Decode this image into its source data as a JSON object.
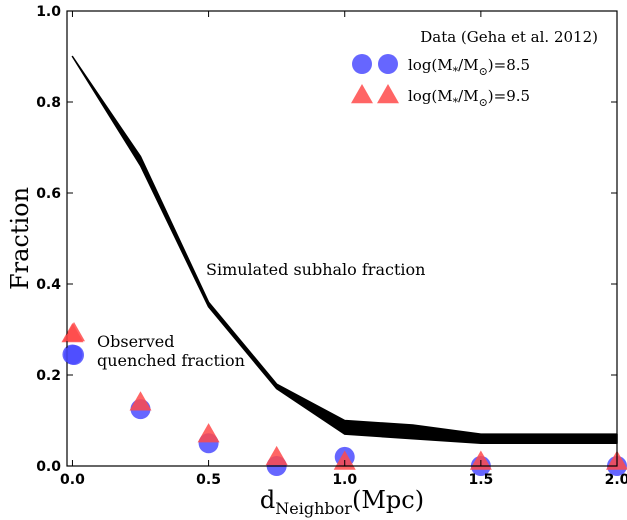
{
  "chart_data": {
    "type": "scatter",
    "xlabel": "d",
    "xlabel_sub": "Neighbor",
    "xlabel_unit": "(Mpc)",
    "ylabel": "Fraction",
    "xlim": [
      -0.02,
      2.0
    ],
    "ylim": [
      0.0,
      1.0
    ],
    "x_ticks": [
      "0.0",
      "0.5",
      "1.0",
      "1.5",
      "2.0"
    ],
    "y_ticks": [
      "0.0",
      "0.2",
      "0.4",
      "0.6",
      "0.8",
      "1.0"
    ],
    "grid": false,
    "legend": {
      "title": "Data (Geha et al. 2012)",
      "placement": "top-right"
    },
    "band": {
      "label": "Simulated subhalo fraction",
      "color": "#000000",
      "x": [
        0.0,
        0.25,
        0.5,
        0.75,
        1.0,
        1.25,
        1.5,
        1.75,
        2.0
      ],
      "upper": [
        0.9,
        0.68,
        0.36,
        0.18,
        0.1,
        0.09,
        0.07,
        0.07,
        0.07
      ],
      "lower": [
        0.9,
        0.66,
        0.35,
        0.17,
        0.07,
        0.06,
        0.05,
        0.05,
        0.05
      ]
    },
    "series": [
      {
        "name_prefix": "log(M",
        "name_sub": "*",
        "name_mid": "/M",
        "name_sub2": "⊙",
        "name_suffix": ")=8.5",
        "marker": "circle",
        "color": "#4b4bff",
        "x": [
          0.0,
          0.25,
          0.5,
          0.75,
          1.0,
          1.5,
          2.0
        ],
        "y": [
          0.245,
          0.125,
          0.05,
          0.0,
          0.02,
          0.0,
          0.0
        ]
      },
      {
        "name_prefix": "log(M",
        "name_sub": "*",
        "name_mid": "/M",
        "name_sub2": "⊙",
        "name_suffix": ")=9.5",
        "marker": "triangle",
        "color": "#ff4a4a",
        "x": [
          0.0,
          0.25,
          0.5,
          0.75,
          1.0,
          1.5,
          2.0
        ],
        "y": [
          0.29,
          0.14,
          0.07,
          0.02,
          0.01,
          0.01,
          0.01
        ]
      }
    ],
    "annotations": [
      {
        "text": "Simulated subhalo fraction",
        "x": 0.5,
        "y": 0.43
      },
      {
        "text": "Observed",
        "x": 0.09,
        "y": 0.27
      },
      {
        "text": "quenched fraction",
        "x": 0.09,
        "y": 0.23
      }
    ]
  }
}
